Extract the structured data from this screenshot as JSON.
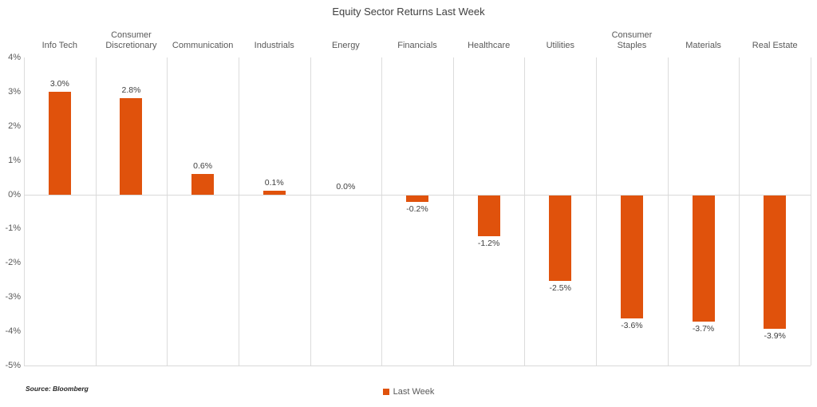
{
  "title": "Equity Sector Returns Last Week",
  "source_note": "Source: Bloomberg",
  "legend": {
    "label": "Last Week"
  },
  "colors": {
    "bar": "#e0520c",
    "gridline": "#dcdcdc",
    "axis_line": "#d9d9d9",
    "axis_text": "#595959",
    "value_label_text": "#404040"
  },
  "chart_data": {
    "type": "bar",
    "title": "Equity Sector Returns Last Week",
    "categories": [
      "Info Tech",
      "Consumer Discretionary",
      "Communication",
      "Industrials",
      "Energy",
      "Financials",
      "Healthcare",
      "Utilities",
      "Consumer Staples",
      "Materials",
      "Real Estate"
    ],
    "series": [
      {
        "name": "Last Week",
        "values": [
          3.0,
          2.8,
          0.6,
          0.1,
          0.0,
          -0.2,
          -1.2,
          -2.5,
          -3.6,
          -3.7,
          -3.9
        ]
      }
    ],
    "value_labels": [
      "3.0%",
      "2.8%",
      "0.6%",
      "0.1%",
      "0.0%",
      "-0.2%",
      "-1.2%",
      "-2.5%",
      "-3.6%",
      "-3.7%",
      "-3.9%"
    ],
    "xlabel": "",
    "ylabel": "",
    "ylim": [
      -5,
      4
    ],
    "yticks": [
      {
        "value": 4,
        "label": "4%"
      },
      {
        "value": 3,
        "label": "3%"
      },
      {
        "value": 2,
        "label": "2%"
      },
      {
        "value": 1,
        "label": "1%"
      },
      {
        "value": 0,
        "label": "0%"
      },
      {
        "value": -1,
        "label": "-1%"
      },
      {
        "value": -2,
        "label": "-2%"
      },
      {
        "value": -3,
        "label": "-3%"
      },
      {
        "value": -4,
        "label": "-4%"
      },
      {
        "value": -5,
        "label": "-5%"
      }
    ],
    "grid": "vertical category separators, zero line, bottom border; no horizontal minor gridlines",
    "legend_position": "bottom-center",
    "source": "Source: Bloomberg"
  }
}
